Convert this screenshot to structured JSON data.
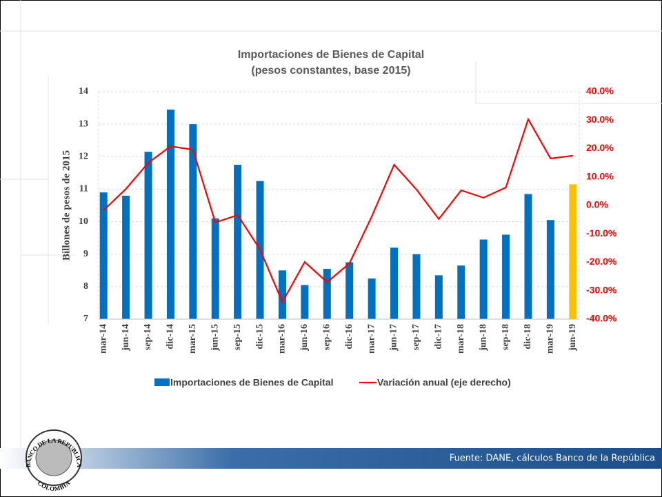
{
  "chart_data": {
    "type": "bar-line",
    "title": "Importaciones de Bienes de Capital",
    "subtitle": "(pesos constantes, base 2015)",
    "y_label": "Billones de pesos de 2015",
    "categories": [
      "mar-14",
      "jun-14",
      "sep-14",
      "dic-14",
      "mar-15",
      "jun-15",
      "sep-15",
      "dic-15",
      "mar-16",
      "jun-16",
      "sep-16",
      "dic-16",
      "mar-17",
      "jun-17",
      "sep-17",
      "dic-17",
      "mar-18",
      "jun-18",
      "sep-18",
      "dic-18",
      "mar-19",
      "jun-19"
    ],
    "series": [
      {
        "name": "Importaciones de Bienes de Capital",
        "type": "bar",
        "color": "#0070c0",
        "colors": [
          "#0070c0",
          "#0070c0",
          "#0070c0",
          "#0070c0",
          "#0070c0",
          "#0070c0",
          "#0070c0",
          "#0070c0",
          "#0070c0",
          "#0070c0",
          "#0070c0",
          "#0070c0",
          "#0070c0",
          "#0070c0",
          "#0070c0",
          "#0070c0",
          "#0070c0",
          "#0070c0",
          "#0070c0",
          "#0070c0",
          "#0070c0",
          "#ffc000"
        ],
        "values": [
          10.9,
          10.8,
          12.15,
          13.45,
          13.0,
          10.1,
          11.75,
          11.25,
          8.5,
          8.05,
          8.55,
          8.75,
          8.25,
          9.2,
          9.0,
          8.35,
          8.65,
          9.45,
          9.6,
          10.85,
          10.05,
          11.15
        ]
      },
      {
        "name": "Variación anual (eje derecho)",
        "type": "line",
        "axis": "y2",
        "color": "#ff0000",
        "values": [
          -1.7,
          5.8,
          15,
          20.8,
          19.6,
          -6,
          -3.4,
          -15.5,
          -34,
          -19.9,
          -27,
          -20.4,
          -3.9,
          14.3,
          5.6,
          -4.8,
          5.3,
          2.7,
          6.3,
          30.3,
          16.5,
          17.5
        ]
      }
    ],
    "ylim": [
      7,
      14
    ],
    "yticks": [
      7,
      8,
      9,
      10,
      11,
      12,
      13,
      14
    ],
    "y2lim": [
      -40,
      40
    ],
    "y2ticks": [
      {
        "value": 40,
        "label": "40.0%"
      },
      {
        "value": 30,
        "label": "30.0%"
      },
      {
        "value": 20,
        "label": "20.0%"
      },
      {
        "value": 10,
        "label": "10.0%"
      },
      {
        "value": 0,
        "label": "0.0%"
      },
      {
        "value": -10,
        "label": "-10.0%"
      },
      {
        "value": -20,
        "label": "-20.0%"
      },
      {
        "value": -30,
        "label": "-30.0%"
      },
      {
        "value": -40,
        "label": "-40.0%"
      }
    ],
    "grid": true
  },
  "footer": {
    "source": "Fuente: DANE, cálculos Banco de la República",
    "logo_top": "BANCO DE LA REPUBLICA",
    "logo_bottom": "COLOMBIA"
  }
}
